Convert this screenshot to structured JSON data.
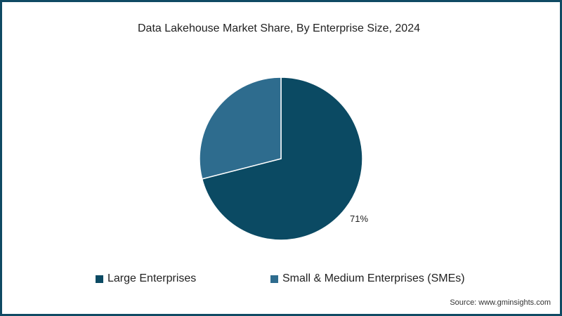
{
  "chart": {
    "title": "Data Lakehouse Market Share, By Enterprise Size, 2024",
    "data_label": "71%",
    "source": "Source: www.gminsights.com"
  },
  "legend": [
    {
      "label": "Large Enterprises",
      "color": "#0b4a63"
    },
    {
      "label": "Small & Medium Enterprises (SMEs)",
      "color": "#2e6c8e"
    }
  ],
  "colors": {
    "frame": "#0f4a63",
    "large": "#0b4a63",
    "sme": "#2e6c8e"
  },
  "chart_data": {
    "type": "pie",
    "title": "Data Lakehouse Market Share, By Enterprise Size, 2024",
    "categories": [
      "Large Enterprises",
      "Small & Medium Enterprises (SMEs)"
    ],
    "values": [
      71,
      29
    ],
    "unit": "%",
    "data_labels": [
      "71%",
      ""
    ],
    "legend_position": "bottom",
    "source": "Source: www.gminsights.com"
  }
}
